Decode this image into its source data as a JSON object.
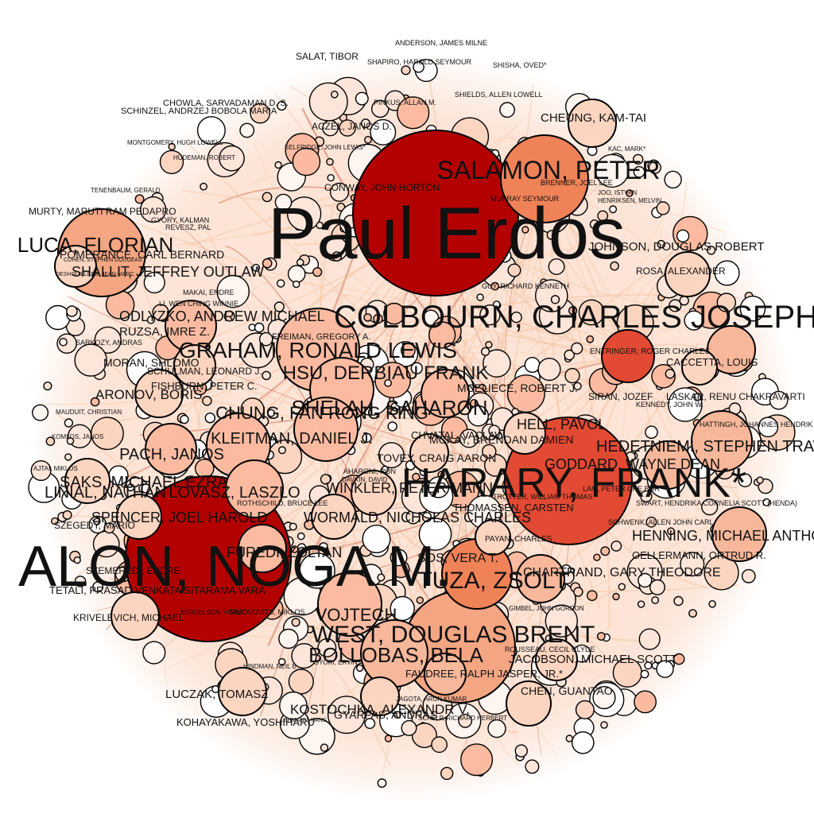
{
  "graph": {
    "colors": {
      "background": "#ffffff",
      "edge_light": "#f6c9ac",
      "edge_dark": "#d4715a",
      "node_stroke": "#000000",
      "hub": "#b30000",
      "major": "#e34a33",
      "mid": "#f08258",
      "light": "#fcbba1",
      "pale": "#fee5d9",
      "white": "#fff5f0"
    },
    "labels": {
      "erdos": "Paul Erdos",
      "alon": "ALON, NOGA M.",
      "harary": "HARARY, FRANK*",
      "bollobas": "BOLLOBAS, BELA",
      "west": "WEST, DOUGLAS BRENT",
      "tuza": "TUZA, ZSOLT",
      "rodl": "VOJTECH",
      "hedetniemi": "HEDETNIEMI, STEPHEN TRAVIS",
      "mcelliece": "MCELIECE, ROBERT J.",
      "luca": "LUCA, FLORIAN",
      "shallit": "SHALLIT, JEFFREY OUTLAW",
      "salamon": "SALAMON, PETER",
      "colbourn": "COLBOURN, CHARLES JOSEPH",
      "graham": "GRAHAM, RONALD LEWIS",
      "hsu": "HSU, DERBIAU FRANK",
      "chung": "CHUNG, FAN RONG KING",
      "shelah": "SHELAH, SAHARON",
      "kleitman": "KLEITMAN, DANIEL J.",
      "pach": "PACH, JANOS",
      "linial": "LINIAL, NATHAN",
      "lovasz": "LOVASZ, LASZLO",
      "winkler": "WINKLER, PETER MANN",
      "spencer": "SPENCER, JOEL HAROLD",
      "wormald": "WORMALD, NICHOLAS CHARLES",
      "furedi": "FUREDI, ZOLTAN",
      "sos": "SOS, VERA T.",
      "saks": "SAKS, MICHAEL EZRA",
      "dyer": "DYER, MARTIN",
      "aronov": "ARONOV, BORIS",
      "odlyzko": "ODLYZKO, ANDREW MICHAEL",
      "ruzsa": "RUZSA, IMRE Z.",
      "freiman": "FREIMAN, GREGORY A.",
      "schulman": "SCHULMAN, LEONARD J.",
      "moran": "MORAN, SHLOMO",
      "fishburn": "FISHBURN, PETER C.",
      "goddard": "GODDARD, WAYNE DEAN",
      "henning": "HENNING, MICHAEL ANTHONY",
      "chartrand": "CHARTRAND, GARY THEODORE",
      "jacobson": "JACOBSON, MICHAEL SCOTT",
      "faudree": "FAUDREE, RALPH JASPER, JR.*",
      "chen": "CHEN, GUANTAO",
      "kostochka": "KOSTOCHKA, ALEXANDR V.",
      "gyarfas": "GYARFAS, ANDRAS",
      "luczak": "LUCZAK, TOMASZ",
      "kohayakawa": "KOHAYAKAWA, YOSHIHARU",
      "krivelevich": "KRIVELEVICH, MICHAEL",
      "tetali": "TETALI, PRASAD VENKATA SITARAMA VARA",
      "szemeredi": "SZEMEREDI, ENDRE",
      "szegedy": "SZEGEDY, MARIO",
      "tovey": "TOVEY, CRAIG AARON",
      "chvatal": "CHVATAL, VACLAV",
      "hell": "HELL, PAVOL",
      "mckay": "MCKAY, BRENDAN DAMIEN",
      "thomassen": "THOMASSEN, CARSTEN",
      "payan": "PAYAN, CHARLES",
      "oellermann": "OELLERMANN, ORTRUD R.",
      "schwenk": "SCHWENK, ALLEN JOHN CARL",
      "swart": "SWART, HENDRIKA CORNELIA SCOTT (HENDA)",
      "lam": "LAM, PETER CHE BOR",
      "entringer": "ENTRINGER, ROGER CHARLES",
      "caccetta": "CACCETTA, LOUIS",
      "siran": "SIRAN, JOZEF",
      "laskar": "LASKAR, RENU CHAKRAVARTI",
      "hattingh": "HATTINGH, JOHANNES HENDRIK",
      "kennedy": "KENNEDY, JOHN W.",
      "rosa": "ROSA, ALEXANDER",
      "johnson": "JOHNSON, DOUGLAS ROBERT",
      "guy": "GUY, RICHARD KENNETH",
      "kanto": "MANTO, ROBERT",
      "cheung": "CHEUNG, KAM-TAI",
      "shisha": "SHISHA, OVED*",
      "anderson": "ANDERSON, JAMES MILNE",
      "salat": "SALAT, TIBOR",
      "shapiro": "SHAPIRO, HAROLD SEYMOUR",
      "shields": "SHIELDS, ALLEN LOWELL",
      "pinkus": "PINKUS, ALLAN M.",
      "chowla": "CHOWLA, SARVADAMAN D. S.",
      "schinzel": "SCHINZEL, ANDRZEJ BOBOLA MARIA",
      "aczel": "ACZEL, JANOS D.",
      "selfridge": "SELFRIDGE, JOHN LEWIS*",
      "conway": "CONWAY, JOHN HORTON",
      "montgomery": "MONTGOMERY, HUGH LOWELL",
      "hudeman": "HUDEMAN, ROBERT",
      "tenenbaum": "TENENBAUM, GERALD",
      "murty": "MURTY, MARUTI RAM PEDAPRO",
      "gyory": "GYORY, KALMAN",
      "revesz": "REVESZ, PAL",
      "pomerance": "POMERANCE, CARL BERNARD",
      "cohen": "COHEN, STEPHEN DOUGLAS",
      "deshouillers": "DESHOUILLERS, JEAN-MARC",
      "makai": "MAKAI, ENDRE",
      "li": "LI, WEN CHING WINNIE",
      "sarkozy": "SARKOZY, ANDRAS",
      "mauduit": "MAUDUIT, CHRISTIAN",
      "komlos": "KOMLOS, JANOS",
      "ajtai": "AJTAI, MIKLOS",
      "hindman": "HINDMAN, NEIL B.",
      "gyori": "GYORI, ERVIN",
      "jagota": "JAGOTA, ARUN KUMAR",
      "rousseau": "ROUSSEAU, CECIL CLYDE",
      "gimbel": "GIMBEL, JOHN GORDON",
      "kasch": "KASCH, FRIEDRICH",
      "schelp": "SCHELP, RICHARD HERBERT",
      "lehmann": "LEHMANN, HANS",
      "simonovits": "SIMONOVITS, MIKLOS",
      "sergelson": "BERGELSON, VITALY",
      "rothschild": "ROTHSCHILD, BRUCE LEE",
      "aharoni": "AHARONI, RON",
      "davkin": "DAVKIN, DAVID",
      "trotter": "TROTTER, WILLIAM THOMAS",
      "hedrlin": "HEDRLIN, ZDENEK",
      "babai": "BABAI, LASZLO",
      "brenner": "BRENNER, JOEL LEE",
      "murray": "MURRAY SEYMOUR",
      "joo": "JOO, ISTVAN",
      "henrik": "HENRIKSEN, MELVIN",
      "kac": "KAC, MARK*"
    }
  }
}
